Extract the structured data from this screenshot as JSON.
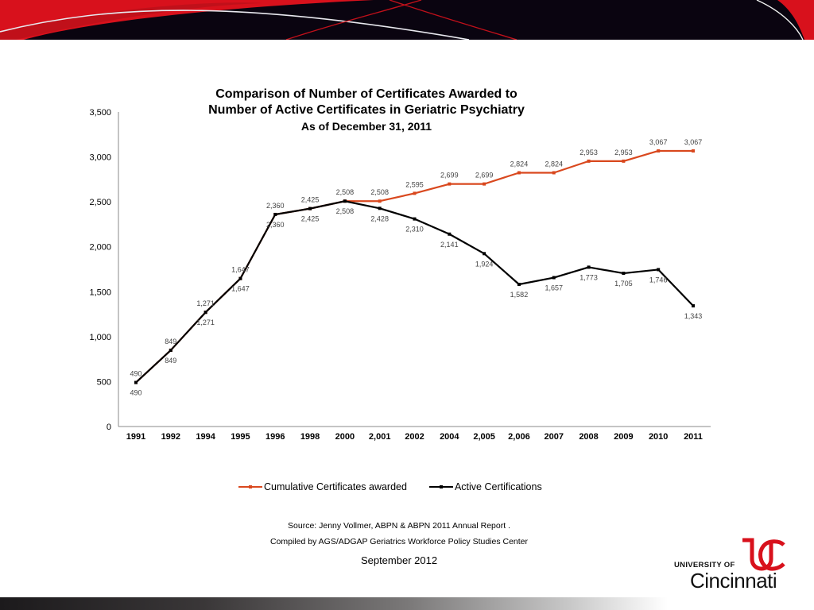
{
  "slide": {
    "title_line1": "Comparison of Number of Certificates Awarded to",
    "title_line2": "Number of Active Certificates in Geriatric Psychiatry",
    "subtitle": "As of December 31, 2011",
    "source": "Source:  Jenny Vollmer, ABPN & ABPN 2011 Annual Report .",
    "compiled_by": "Compiled by AGS/ADGAP Geriatrics Workforce Policy Studies Center",
    "date": "September 2012",
    "logo": {
      "line1": "UNIVERSITY OF",
      "line2": "Cincinnati",
      "monogram": "UC"
    },
    "colors": {
      "banner_red": "#d8111c",
      "banner_dark": "#0a0410",
      "accent_orange": "#d9481e",
      "active_black": "#000000"
    }
  },
  "chart_data": {
    "type": "line",
    "title": "Comparison of Number of Certificates Awarded to Number of Active Certificates in Geriatric Psychiatry",
    "subtitle": "As of December 31, 2011",
    "xlabel": "",
    "ylabel": "",
    "ylim": [
      0,
      3500
    ],
    "yticks": [
      0,
      500,
      1000,
      1500,
      2000,
      2500,
      3000,
      3500
    ],
    "ytick_labels": [
      "0",
      "500",
      "1,000",
      "1,500",
      "2,000",
      "2,500",
      "3,000",
      "3,500"
    ],
    "grid": false,
    "legend_position": "bottom",
    "categories": [
      "1991",
      "1992",
      "1994",
      "1995",
      "1996",
      "1998",
      "2000",
      "2,001",
      "2002",
      "2004",
      "2,005",
      "2,006",
      "2007",
      "2008",
      "2009",
      "2010",
      "2011"
    ],
    "series": [
      {
        "name": "Cumulative Certificates awarded",
        "color": "#d9481e",
        "values": [
          490,
          849,
          1271,
          1647,
          2360,
          2425,
          2508,
          2508,
          2595,
          2699,
          2699,
          2824,
          2824,
          2953,
          2953,
          3067,
          3067
        ],
        "labels": [
          "490",
          "849",
          "1,271",
          "1,647",
          "2,360",
          "2,425",
          "2,508",
          "2,508",
          "2,595",
          "2,699",
          "2,699",
          "2,824",
          "2,824",
          "2,953",
          "2,953",
          "3,067",
          "3,067"
        ]
      },
      {
        "name": "Active Certifications",
        "color": "#000000",
        "values": [
          490,
          849,
          1271,
          1647,
          2360,
          2425,
          2508,
          2428,
          2310,
          2141,
          1924,
          1582,
          1657,
          1773,
          1705,
          1746,
          1343
        ],
        "labels": [
          "490",
          "849",
          "1,271",
          "1,647",
          "2,360",
          "2,425",
          "2,508",
          "2,428",
          "2,310",
          "2,141",
          "1,924",
          "1,582",
          "1,657",
          "1,773",
          "1,705",
          "1,746",
          "1,343"
        ]
      }
    ]
  }
}
